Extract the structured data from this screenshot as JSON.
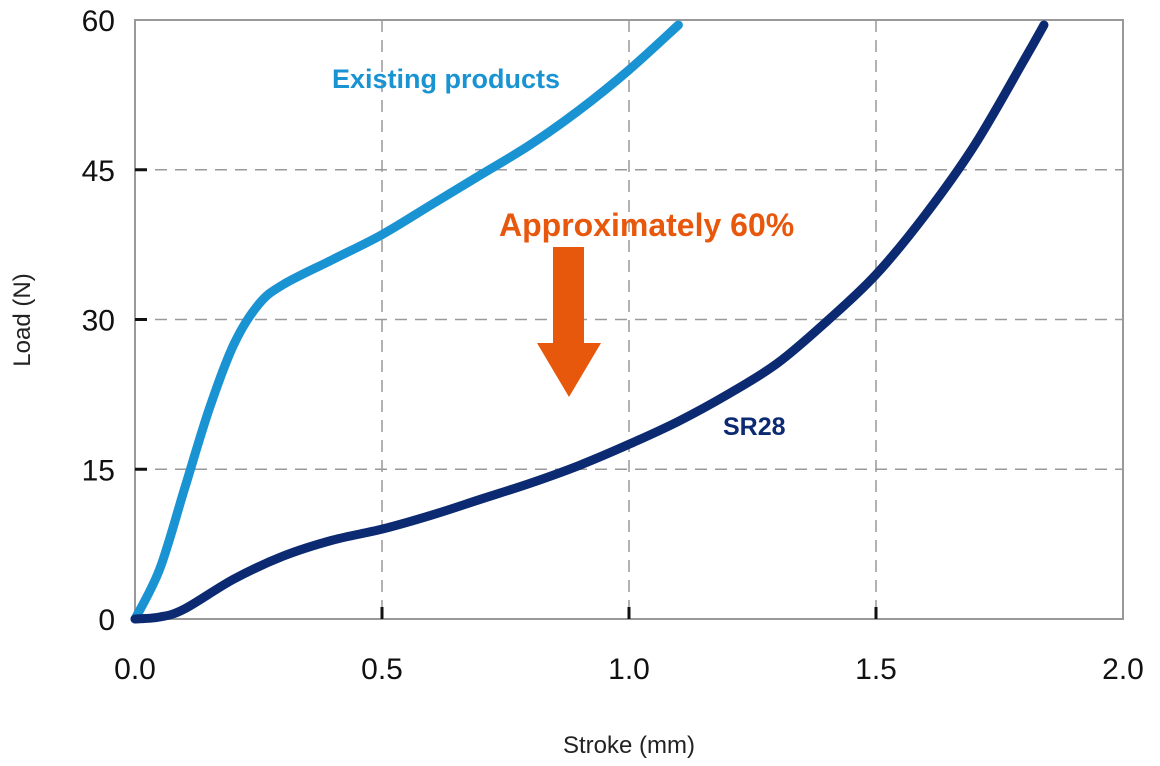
{
  "chart_data": {
    "type": "line",
    "title": "",
    "xlabel": "Stroke (mm)",
    "ylabel": "Load (N)",
    "xlim": [
      0,
      2.0
    ],
    "ylim": [
      0,
      60
    ],
    "xticks": [
      "0.0",
      "0.5",
      "1.0",
      "1.5",
      "2.0"
    ],
    "xtick_values": [
      0,
      0.5,
      1.0,
      1.5,
      2.0
    ],
    "yticks": [
      "0",
      "15",
      "30",
      "45",
      "60"
    ],
    "ytick_values": [
      0,
      15,
      30,
      45,
      60
    ],
    "grid": true,
    "series": [
      {
        "name": "Existing products",
        "color": "#1a93d3",
        "x": [
          0,
          0.05,
          0.1,
          0.15,
          0.2,
          0.25,
          0.3,
          0.4,
          0.5,
          0.6,
          0.7,
          0.8,
          0.9,
          1.0,
          1.1
        ],
        "y": [
          0,
          5,
          13,
          21,
          27.5,
          31.5,
          33.5,
          36,
          38.5,
          41.5,
          44.5,
          47.5,
          51,
          55,
          59.5
        ]
      },
      {
        "name": "SR28",
        "color": "#0c2a72",
        "x": [
          0,
          0.05,
          0.1,
          0.2,
          0.3,
          0.4,
          0.5,
          0.6,
          0.7,
          0.8,
          0.9,
          1.0,
          1.1,
          1.2,
          1.3,
          1.4,
          1.5,
          1.6,
          1.7,
          1.8,
          1.84
        ],
        "y": [
          0,
          0.2,
          1,
          4,
          6.3,
          7.9,
          9,
          10.4,
          12,
          13.6,
          15.4,
          17.5,
          19.8,
          22.5,
          25.6,
          29.8,
          34.5,
          40.5,
          47.5,
          56,
          59.5
        ]
      }
    ],
    "annotations": [
      {
        "text": "Existing products",
        "color": "#1a93d3"
      },
      {
        "text": "SR28",
        "color": "#0c2a72"
      },
      {
        "text": "Approximately 60%",
        "color": "#e8580c",
        "arrow": "down"
      }
    ]
  }
}
